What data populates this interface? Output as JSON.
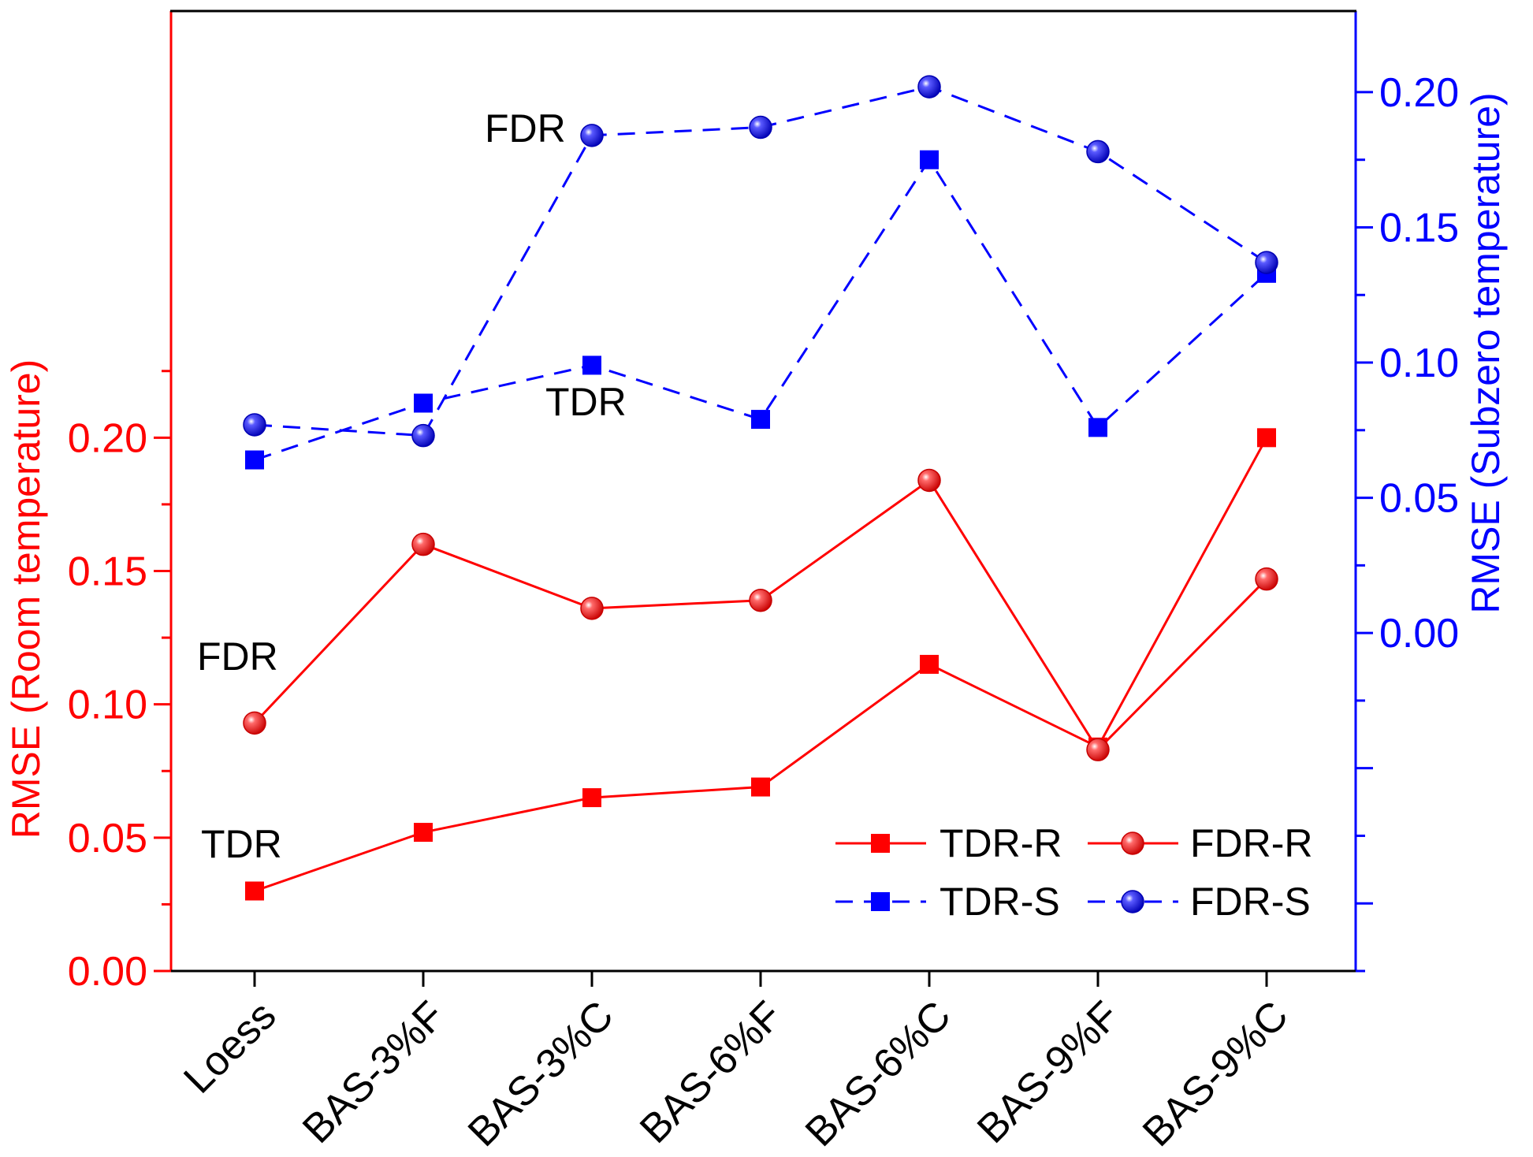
{
  "chart_data": {
    "type": "line",
    "categories": [
      "Loess",
      "BAS-3%F",
      "BAS-3%C",
      "BAS-6%F",
      "BAS-6%C",
      "BAS-9%F",
      "BAS-9%C"
    ],
    "left_axis": {
      "label": "RMSE (Room temperature)",
      "ylim": [
        0,
        0.36
      ],
      "tick_values": [
        0.0,
        0.05,
        0.1,
        0.15,
        0.2
      ],
      "tick_labels": [
        "0.00",
        "0.05",
        "0.10",
        "0.15",
        "0.20"
      ],
      "color": "#ff0000"
    },
    "right_axis": {
      "label": "RMSE (Subzero temperature)",
      "ylim": [
        -0.125,
        0.23
      ],
      "tick_values": [
        0.0,
        0.05,
        0.1,
        0.15,
        0.2
      ],
      "tick_labels": [
        "0.00",
        "0.05",
        "0.10",
        "0.15",
        "0.20"
      ],
      "color": "#0000ff"
    },
    "series": [
      {
        "name": "TDR-R",
        "axis": "left",
        "marker": "square",
        "style": "solid",
        "color": "#ff0000",
        "values": [
          0.03,
          0.052,
          0.065,
          0.069,
          0.115,
          0.084,
          0.2
        ]
      },
      {
        "name": "FDR-R",
        "axis": "left",
        "marker": "sphere",
        "style": "solid",
        "color": "#ff0000",
        "values": [
          0.093,
          0.16,
          0.136,
          0.139,
          0.184,
          0.083,
          0.147
        ]
      },
      {
        "name": "TDR-S",
        "axis": "right",
        "marker": "square",
        "style": "dashed",
        "color": "#0000ff",
        "values": [
          0.064,
          0.085,
          0.099,
          0.079,
          0.175,
          0.076,
          0.133
        ]
      },
      {
        "name": "FDR-S",
        "axis": "right",
        "marker": "sphere",
        "style": "dashed",
        "color": "#0000ff",
        "values": [
          0.077,
          0.073,
          0.184,
          0.187,
          0.202,
          0.178,
          0.137
        ]
      }
    ],
    "annotations": [
      {
        "text": "FDR",
        "series": "FDR-S"
      },
      {
        "text": "TDR",
        "series": "TDR-S"
      },
      {
        "text": "FDR",
        "series": "FDR-R"
      },
      {
        "text": "TDR",
        "series": "TDR-R"
      }
    ],
    "legend": {
      "position": "bottom-right",
      "entries": [
        "TDR-R",
        "FDR-R",
        "TDR-S",
        "FDR-S"
      ]
    }
  }
}
